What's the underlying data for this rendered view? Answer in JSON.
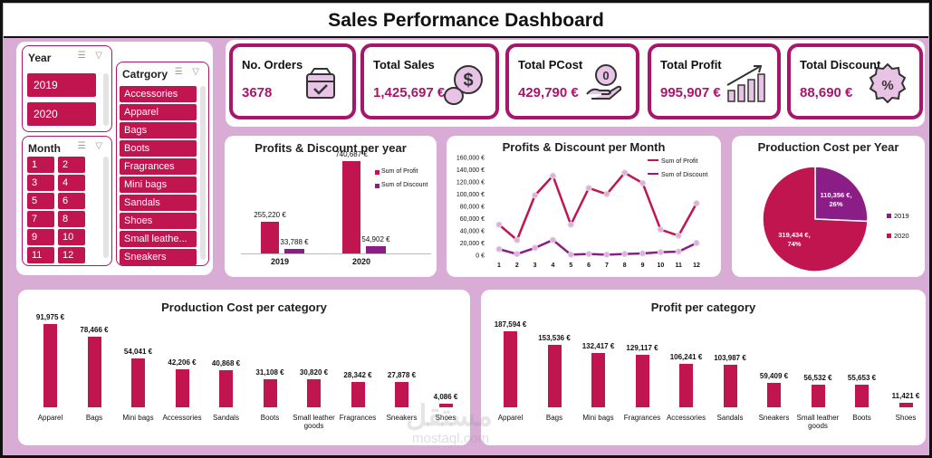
{
  "dashboard": {
    "title": "Sales Performance Dashboard"
  },
  "slicers": {
    "year": {
      "label": "Year",
      "items": [
        "2019",
        "2020"
      ]
    },
    "month": {
      "label": "Month",
      "items": [
        "1",
        "2",
        "3",
        "4",
        "5",
        "6",
        "7",
        "8",
        "9",
        "10",
        "11",
        "12"
      ]
    },
    "category": {
      "label": "Catrgory",
      "items": [
        "Accessories",
        "Apparel",
        "Bags",
        "Boots",
        "Fragrances",
        "Mini bags",
        "Sandals",
        "Shoes",
        "Small leathe...",
        "Sneakers"
      ]
    }
  },
  "kpis": [
    {
      "label": "No. Orders",
      "value": "3678",
      "icon": "delivery-box-icon"
    },
    {
      "label": "Total Sales",
      "value": "1,425,697 €",
      "icon": "coins-dollar-icon"
    },
    {
      "label": "Total PCost",
      "value": "429,790 €",
      "icon": "hand-coin-icon"
    },
    {
      "label": "Total Profit",
      "value": "995,907 €",
      "icon": "growth-chart-icon"
    },
    {
      "label": "Total Discount",
      "value": "88,690 €",
      "icon": "discount-badge-icon"
    }
  ],
  "colors": {
    "primary": "#c0154f",
    "secondary": "#8b1e86",
    "frame": "#a8166b",
    "bg": "#d9acd6"
  },
  "watermark": {
    "arabic": "مستقل",
    "latin": "mostaql.com"
  },
  "chart_data": [
    {
      "type": "bar",
      "title": "Profits & Discount per year",
      "categories": [
        "2019",
        "2020"
      ],
      "series": [
        {
          "name": "Sum of Profit",
          "values": [
            255220,
            740687
          ],
          "labels": [
            "255,220 €",
            "740,687 €"
          ]
        },
        {
          "name": "Sum of Discount",
          "values": [
            33788,
            54902
          ],
          "labels": [
            "33,788 €",
            "54,902 €"
          ]
        }
      ],
      "ylim": [
        0,
        800000
      ]
    },
    {
      "type": "line",
      "title": "Profits & Discount per Month",
      "x": [
        1,
        2,
        3,
        4,
        5,
        6,
        7,
        8,
        9,
        10,
        11,
        12
      ],
      "series": [
        {
          "name": "Sum of Profit",
          "values": [
            50000,
            25000,
            98000,
            130000,
            50000,
            110000,
            100000,
            135000,
            118000,
            42000,
            32000,
            85000
          ]
        },
        {
          "name": "Sum of Discount",
          "values": [
            10000,
            2000,
            12000,
            25000,
            1000,
            2000,
            1000,
            2000,
            3000,
            5000,
            6000,
            20000
          ]
        }
      ],
      "yticks": [
        "0 €",
        "20,000 €",
        "40,000 €",
        "60,000 €",
        "80,000 €",
        "100,000 €",
        "120,000 €",
        "140,000 €",
        "160,000 €"
      ],
      "ylim": [
        0,
        160000
      ]
    },
    {
      "type": "pie",
      "title": "Production Cost per Year",
      "categories": [
        "2019",
        "2020"
      ],
      "values": [
        110356,
        319434
      ],
      "labels": [
        "110,356 €,",
        "319,434 €,"
      ],
      "percent_labels": [
        "26%",
        "74%"
      ]
    },
    {
      "type": "bar",
      "title": "Production Cost per category",
      "categories": [
        "Apparel",
        "Bags",
        "Mini bags",
        "Accessories",
        "Sandals",
        "Boots",
        "Small leather goods",
        "Fragrances",
        "Sneakers",
        "Shoes"
      ],
      "values": [
        91975,
        78466,
        54041,
        42206,
        40868,
        31108,
        30820,
        28342,
        27878,
        4086
      ],
      "labels": [
        "91,975 €",
        "78,466 €",
        "54,041 €",
        "42,206 €",
        "40,868 €",
        "31,108 €",
        "30,820 €",
        "28,342 €",
        "27,878 €",
        "4,086 €"
      ],
      "ylim": [
        0,
        100000
      ]
    },
    {
      "type": "bar",
      "title": "Profit per category",
      "categories": [
        "Apparel",
        "Bags",
        "Mini bags",
        "Fragrances",
        "Accessories",
        "Sandals",
        "Sneakers",
        "Small leather goods",
        "Boots",
        "Shoes"
      ],
      "values": [
        187594,
        153536,
        132417,
        129117,
        106241,
        103987,
        59409,
        56532,
        55653,
        11421
      ],
      "labels": [
        "187,594 €",
        "153,536 €",
        "132,417 €",
        "129,117 €",
        "106,241 €",
        "103,987 €",
        "59,409 €",
        "56,532 €",
        "55,653 €",
        "11,421 €"
      ],
      "ylim": [
        0,
        200000
      ]
    }
  ]
}
